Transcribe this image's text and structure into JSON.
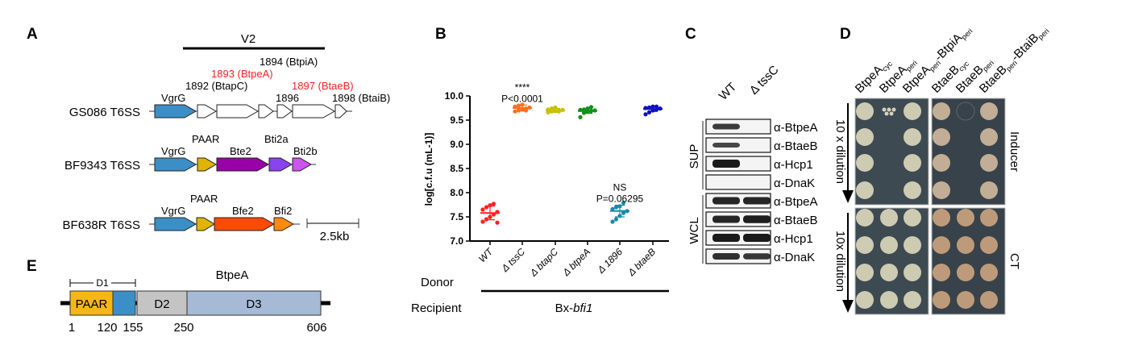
{
  "panel_labels": {
    "a": "A",
    "b": "B",
    "c": "C",
    "d": "D",
    "e": "E"
  },
  "panel_a": {
    "region_label": "V2",
    "scale_label": "2.5kb",
    "loci": [
      {
        "name": "GS086 T6SS",
        "genes": [
          {
            "label": "VgrG",
            "color": "#3b8fc6",
            "label_color": "#000000"
          },
          {
            "label": "1892 (BtapC)",
            "color": "#ffffff",
            "label_color": "#000000"
          },
          {
            "label": "1893 (BtpeA)",
            "color": "#ffffff",
            "label_color": "#ff2020"
          },
          {
            "label": "1894 (BtpiA)",
            "color": "#ffffff",
            "label_color": "#000000"
          },
          {
            "label": "1896",
            "color": "#ffffff",
            "label_color": "#000000"
          },
          {
            "label": "1897 (BtaeB)",
            "color": "#ffffff",
            "label_color": "#ff2020"
          },
          {
            "label": "1898 (BtaiB)",
            "color": "#ffffff",
            "label_color": "#000000"
          }
        ]
      },
      {
        "name": "BF9343 T6SS",
        "genes": [
          {
            "label": "VgrG",
            "color": "#3b8fc6",
            "label_color": "#000000"
          },
          {
            "label": "PAAR",
            "color": "#e0b400",
            "label_color": "#000000"
          },
          {
            "label": "Bte2",
            "color": "#9a00a8",
            "label_color": "#000000"
          },
          {
            "label": "Bti2a",
            "color": "#8844ee",
            "label_color": "#000000"
          },
          {
            "label": "Bti2b",
            "color": "#cc55ee",
            "label_color": "#000000"
          }
        ]
      },
      {
        "name": "BF638R T6SS",
        "genes": [
          {
            "label": "VgrG",
            "color": "#3b8fc6",
            "label_color": "#000000"
          },
          {
            "label": "PAAR",
            "color": "#e0b400",
            "label_color": "#000000"
          },
          {
            "label": "Bfe2",
            "color": "#ff4a05",
            "label_color": "#000000"
          },
          {
            "label": "Bfi2",
            "color": "#ff8a10",
            "label_color": "#000000"
          }
        ]
      }
    ]
  },
  "panel_e": {
    "title": "BtpeA",
    "bracket_label": "D1",
    "domains": [
      {
        "label": "PAAR",
        "color": "#f5b616"
      },
      {
        "label": "",
        "color": "#3b8fc6"
      },
      {
        "label": "D2",
        "color": "#c4c4c4"
      },
      {
        "label": "D3",
        "color": "#a6bad6"
      }
    ],
    "positions": [
      "1",
      "120",
      "155",
      "250",
      "606"
    ]
  },
  "panel_b": {
    "donor_label": "Donor",
    "recipient_label": "Recipient",
    "recipient_value": "Bx-",
    "recipient_value_italic": "bfi1",
    "annotations": [
      {
        "stars": "****",
        "p": "P<0.0001",
        "category": "Δ tssC"
      },
      {
        "stars": "NS",
        "p": "P=0.06295",
        "category": "Δ 1896"
      }
    ]
  },
  "chart_data": {
    "type": "scatter",
    "title": "",
    "xlabel": "",
    "ylabel": "log[c.f.u (mL-1)]",
    "ylim": [
      7.0,
      10.0
    ],
    "yticks": [
      "7.0",
      "7.5",
      "8.0",
      "8.5",
      "9.0",
      "9.5",
      "10.0"
    ],
    "categories": [
      "WT",
      "Δ tssC",
      "Δ btapC",
      "Δ btpeA",
      "Δ 1896",
      "Δ btaeB"
    ],
    "colors": [
      "#ff2020",
      "#ff7020",
      "#c8c000",
      "#10901a",
      "#1a8aa8",
      "#1010c0"
    ],
    "means": [
      7.58,
      9.75,
      9.7,
      9.69,
      7.62,
      9.73
    ],
    "sd": [
      0.14,
      0.06,
      0.04,
      0.05,
      0.12,
      0.05
    ],
    "values": [
      [
        7.4,
        7.45,
        7.5,
        7.55,
        7.6,
        7.65,
        7.7,
        7.74,
        7.77,
        7.38
      ],
      [
        9.68,
        9.7,
        9.72,
        9.74,
        9.76,
        9.78,
        9.8,
        9.82,
        9.7
      ],
      [
        9.66,
        9.68,
        9.69,
        9.7,
        9.71,
        9.72,
        9.74,
        9.76,
        9.68
      ],
      [
        9.56,
        9.65,
        9.67,
        9.69,
        9.7,
        9.71,
        9.72,
        9.74,
        9.77
      ],
      [
        7.4,
        7.45,
        7.52,
        7.58,
        7.62,
        7.66,
        7.7,
        7.72,
        7.79
      ],
      [
        9.62,
        9.66,
        9.7,
        9.72,
        9.74,
        9.75,
        9.76,
        9.78,
        9.78
      ]
    ]
  },
  "panel_c": {
    "lanes": [
      "WT",
      "Δ tssC"
    ],
    "groups": [
      {
        "label": "SUP",
        "rows": [
          {
            "label": "α-BtpeA",
            "bands": [
              0.7,
              0
            ]
          },
          {
            "label": "α-BtaeB",
            "bands": [
              0.6,
              0
            ]
          },
          {
            "label": "α-Hcp1",
            "bands": [
              1,
              0
            ]
          },
          {
            "label": "α-DnaK",
            "bands": [
              0,
              0
            ]
          }
        ]
      },
      {
        "label": "WCL",
        "rows": [
          {
            "label": "α-BtpeA",
            "bands": [
              0.9,
              0.9
            ]
          },
          {
            "label": "α-BtaeB",
            "bands": [
              0.9,
              0.95
            ]
          },
          {
            "label": "α-Hcp1",
            "bands": [
              1,
              1
            ]
          },
          {
            "label": "α-DnaK",
            "bands": [
              0.8,
              0.75
            ]
          }
        ]
      }
    ]
  },
  "panel_d": {
    "columns": [
      {
        "base": "BtpeA",
        "sub": "cyc",
        "extra": ""
      },
      {
        "base": "BtpeA",
        "sub": "peri",
        "extra": ""
      },
      {
        "base": "BtpeA",
        "sub": "peri",
        "extra": "-BtpiA",
        "extra_sub": "peri"
      },
      {
        "base": "BtaeB",
        "sub": "cyc",
        "extra": ""
      },
      {
        "base": "BtaeB",
        "sub": "peri",
        "extra": ""
      },
      {
        "base": "BtaeB",
        "sub": "peri",
        "extra": "-BtaiB",
        "extra_sub": "peri"
      }
    ],
    "conditions": [
      {
        "label": "Inducer",
        "dilution_label": "10 x dilution",
        "growth": [
          [
            1,
            0.4,
            1,
            1,
            0.1,
            1
          ],
          [
            1,
            0,
            1,
            1,
            0,
            1
          ],
          [
            1,
            0,
            1,
            1,
            0,
            1
          ],
          [
            1,
            0,
            1,
            1,
            0,
            1
          ]
        ]
      },
      {
        "label": "CT",
        "dilution_label": "10x dilution",
        "growth": [
          [
            1,
            1,
            1,
            1,
            1,
            1
          ],
          [
            1,
            1,
            1,
            1,
            1,
            1
          ],
          [
            1,
            1,
            1,
            1,
            1,
            1
          ],
          [
            1,
            1,
            1,
            1,
            1,
            1
          ]
        ]
      }
    ]
  }
}
